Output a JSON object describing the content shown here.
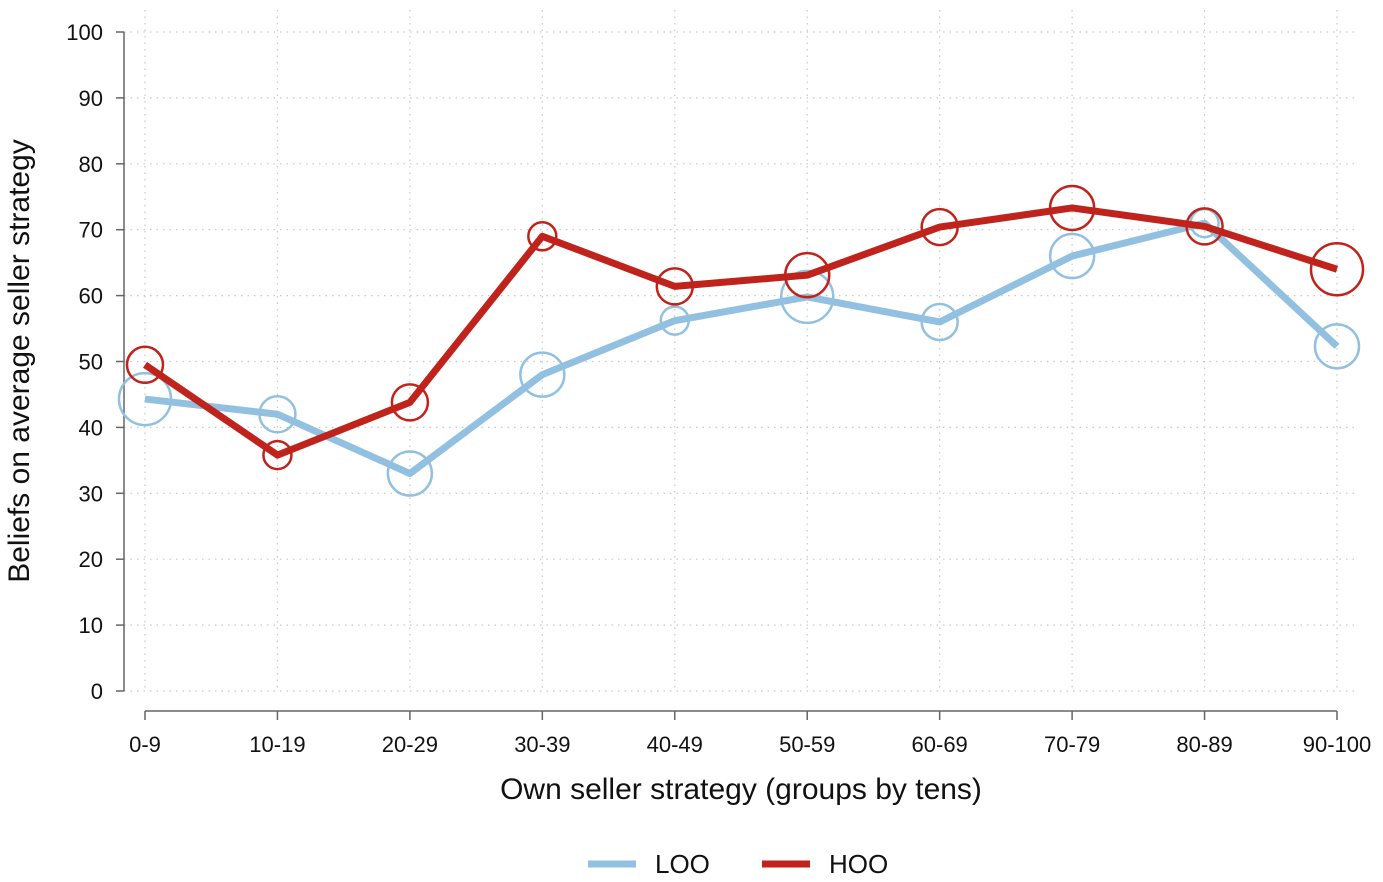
{
  "chart_data": {
    "type": "line",
    "title": "",
    "xlabel": "Own seller strategy (groups by tens)",
    "ylabel": "Beliefs on average seller strategy",
    "categories": [
      "0-9",
      "10-19",
      "20-29",
      "30-39",
      "40-49",
      "50-59",
      "60-69",
      "70-79",
      "80-89",
      "90-100"
    ],
    "ylim": [
      0,
      100
    ],
    "yticks": [
      0,
      10,
      20,
      30,
      40,
      50,
      60,
      70,
      80,
      90,
      100
    ],
    "grid": true,
    "legend_position": "bottom-center",
    "series": [
      {
        "name": "LOO",
        "color": "#92C0E0",
        "values": [
          44.3,
          42.0,
          33.0,
          48.0,
          56.2,
          59.8,
          56.0,
          66.0,
          71.0,
          52.3
        ],
        "marker_sizes": [
          4,
          2,
          3,
          3,
          1,
          4,
          2,
          3,
          1,
          3
        ]
      },
      {
        "name": "HOO",
        "color": "#C0231B",
        "values": [
          49.5,
          35.8,
          43.8,
          69.0,
          61.4,
          63.1,
          70.4,
          73.3,
          70.5,
          64.0
        ],
        "marker_sizes": [
          2,
          1,
          2,
          1,
          2,
          3,
          2,
          3,
          2,
          4
        ]
      }
    ]
  }
}
